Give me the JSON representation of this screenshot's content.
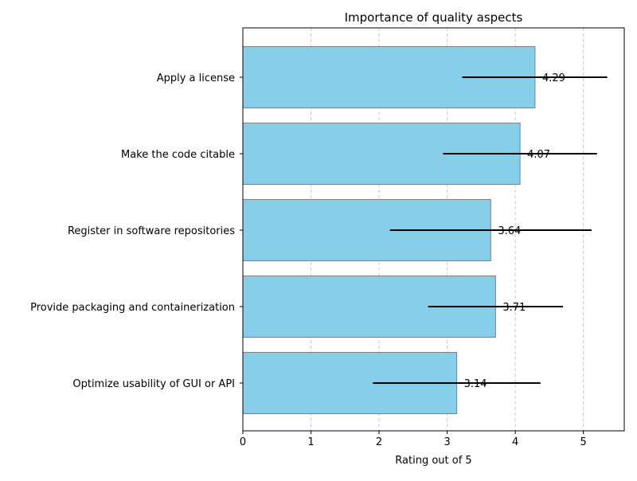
{
  "chart_data": {
    "type": "bar",
    "orientation": "horizontal",
    "title": "Importance of quality aspects",
    "xlabel": "Rating out of 5",
    "ylabel": "",
    "xlim": [
      0,
      5.6
    ],
    "xticks": [
      0,
      1,
      2,
      3,
      4,
      5
    ],
    "grid": "x-dashed",
    "bar_color": "#87CEEB",
    "bar_edge_color": "#808080",
    "errorbar_color": "#000000",
    "categories": [
      "Apply a license",
      "Make the code citable",
      "Register in software repositories",
      "Provide packaging and containerization",
      "Optimize usability of GUI or API"
    ],
    "values": [
      4.29,
      4.07,
      3.64,
      3.71,
      3.14
    ],
    "value_labels": [
      "4.29",
      "4.07",
      "3.64",
      "3.71",
      "3.14"
    ],
    "error_low": [
      3.22,
      2.94,
      2.16,
      2.72,
      1.91
    ],
    "error_high": [
      5.35,
      5.2,
      5.12,
      4.7,
      4.37
    ]
  }
}
